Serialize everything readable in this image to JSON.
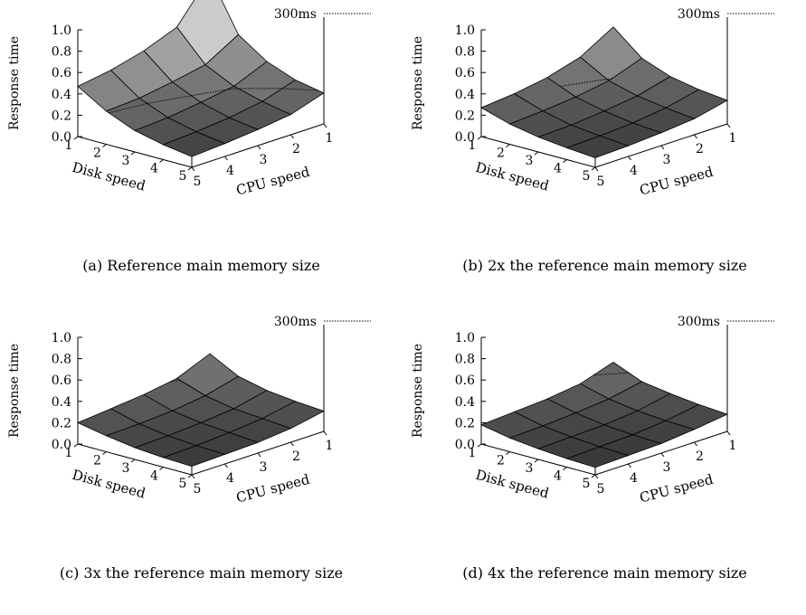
{
  "panels": [
    {
      "caption": "(a) Reference main memory size",
      "legend_label": "300ms",
      "ylabel": "Response time",
      "xlabel": "Disk speed",
      "zlabel": "CPU speed"
    },
    {
      "caption": "(b) 2x the reference main memory size",
      "legend_label": "300ms",
      "ylabel": "Response time",
      "xlabel": "Disk speed",
      "zlabel": "CPU speed"
    },
    {
      "caption": "(c) 3x the reference main memory size",
      "legend_label": "300ms",
      "ylabel": "Response time",
      "xlabel": "Disk speed",
      "zlabel": "CPU speed"
    },
    {
      "caption": "(d) 4x the reference main memory size",
      "legend_label": "300ms",
      "ylabel": "Response time",
      "xlabel": "Disk speed",
      "zlabel": "CPU speed"
    }
  ],
  "chart_data": [
    {
      "type": "surface",
      "xlabel": "Disk speed",
      "zlabel": "CPU speed",
      "ylabel": "Response time",
      "disk_speed": [
        1,
        2,
        3,
        4,
        5
      ],
      "cpu_speed": [
        1,
        2,
        3,
        4,
        5
      ],
      "yticks": [
        "0.0",
        "0.2",
        "0.4",
        "0.6",
        "0.8",
        "1.0"
      ],
      "xticks": [
        "1",
        "2",
        "3",
        "4",
        "5"
      ],
      "zticks": [
        "1",
        "2",
        "3",
        "4",
        "5"
      ],
      "ylim": [
        0,
        1
      ],
      "contour_level": 0.3,
      "legend": "300ms",
      "response_time": [
        [
          1.1,
          0.72,
          0.6,
          0.52,
          0.47
        ],
        [
          0.62,
          0.44,
          0.38,
          0.33,
          0.31
        ],
        [
          0.44,
          0.31,
          0.26,
          0.22,
          0.2
        ],
        [
          0.34,
          0.24,
          0.19,
          0.16,
          0.14
        ],
        [
          0.29,
          0.19,
          0.15,
          0.12,
          0.1
        ]
      ]
    },
    {
      "type": "surface",
      "xlabel": "Disk speed",
      "zlabel": "CPU speed",
      "ylabel": "Response time",
      "disk_speed": [
        1,
        2,
        3,
        4,
        5
      ],
      "cpu_speed": [
        1,
        2,
        3,
        4,
        5
      ],
      "yticks": [
        "0.0",
        "0.2",
        "0.4",
        "0.6",
        "0.8",
        "1.0"
      ],
      "xticks": [
        "1",
        "2",
        "3",
        "4",
        "5"
      ],
      "zticks": [
        "1",
        "2",
        "3",
        "4",
        "5"
      ],
      "ylim": [
        0,
        1
      ],
      "contour_level": 0.3,
      "legend": "300ms",
      "response_time": [
        [
          0.62,
          0.44,
          0.35,
          0.3,
          0.27
        ],
        [
          0.4,
          0.29,
          0.24,
          0.21,
          0.19
        ],
        [
          0.3,
          0.22,
          0.18,
          0.15,
          0.14
        ],
        [
          0.25,
          0.18,
          0.14,
          0.12,
          0.11
        ],
        [
          0.22,
          0.15,
          0.12,
          0.1,
          0.09
        ]
      ]
    },
    {
      "type": "surface",
      "xlabel": "Disk speed",
      "zlabel": "CPU speed",
      "ylabel": "Response time",
      "disk_speed": [
        1,
        2,
        3,
        4,
        5
      ],
      "cpu_speed": [
        1,
        2,
        3,
        4,
        5
      ],
      "yticks": [
        "0.0",
        "0.2",
        "0.4",
        "0.6",
        "0.8",
        "1.0"
      ],
      "xticks": [
        "1",
        "2",
        "3",
        "4",
        "5"
      ],
      "zticks": [
        "1",
        "2",
        "3",
        "4",
        "5"
      ],
      "ylim": [
        0,
        1
      ],
      "contour_level": 0.3,
      "legend": "300ms",
      "response_time": [
        [
          0.44,
          0.31,
          0.26,
          0.23,
          0.2
        ],
        [
          0.3,
          0.22,
          0.18,
          0.16,
          0.15
        ],
        [
          0.24,
          0.17,
          0.14,
          0.12,
          0.11
        ],
        [
          0.21,
          0.15,
          0.12,
          0.1,
          0.09
        ],
        [
          0.19,
          0.13,
          0.1,
          0.09,
          0.08
        ]
      ]
    },
    {
      "type": "surface",
      "xlabel": "Disk speed",
      "zlabel": "CPU speed",
      "ylabel": "Response time",
      "disk_speed": [
        1,
        2,
        3,
        4,
        5
      ],
      "cpu_speed": [
        1,
        2,
        3,
        4,
        5
      ],
      "yticks": [
        "0.0",
        "0.2",
        "0.4",
        "0.6",
        "0.8",
        "1.0"
      ],
      "xticks": [
        "1",
        "2",
        "3",
        "4",
        "5"
      ],
      "zticks": [
        "1",
        "2",
        "3",
        "4",
        "5"
      ],
      "ylim": [
        0,
        1
      ],
      "contour_level": 0.3,
      "legend": "300ms",
      "response_time": [
        [
          0.36,
          0.26,
          0.22,
          0.2,
          0.18
        ],
        [
          0.25,
          0.19,
          0.16,
          0.14,
          0.13
        ],
        [
          0.21,
          0.15,
          0.12,
          0.11,
          0.1
        ],
        [
          0.18,
          0.13,
          0.1,
          0.09,
          0.08
        ],
        [
          0.16,
          0.12,
          0.09,
          0.08,
          0.07
        ]
      ]
    }
  ]
}
